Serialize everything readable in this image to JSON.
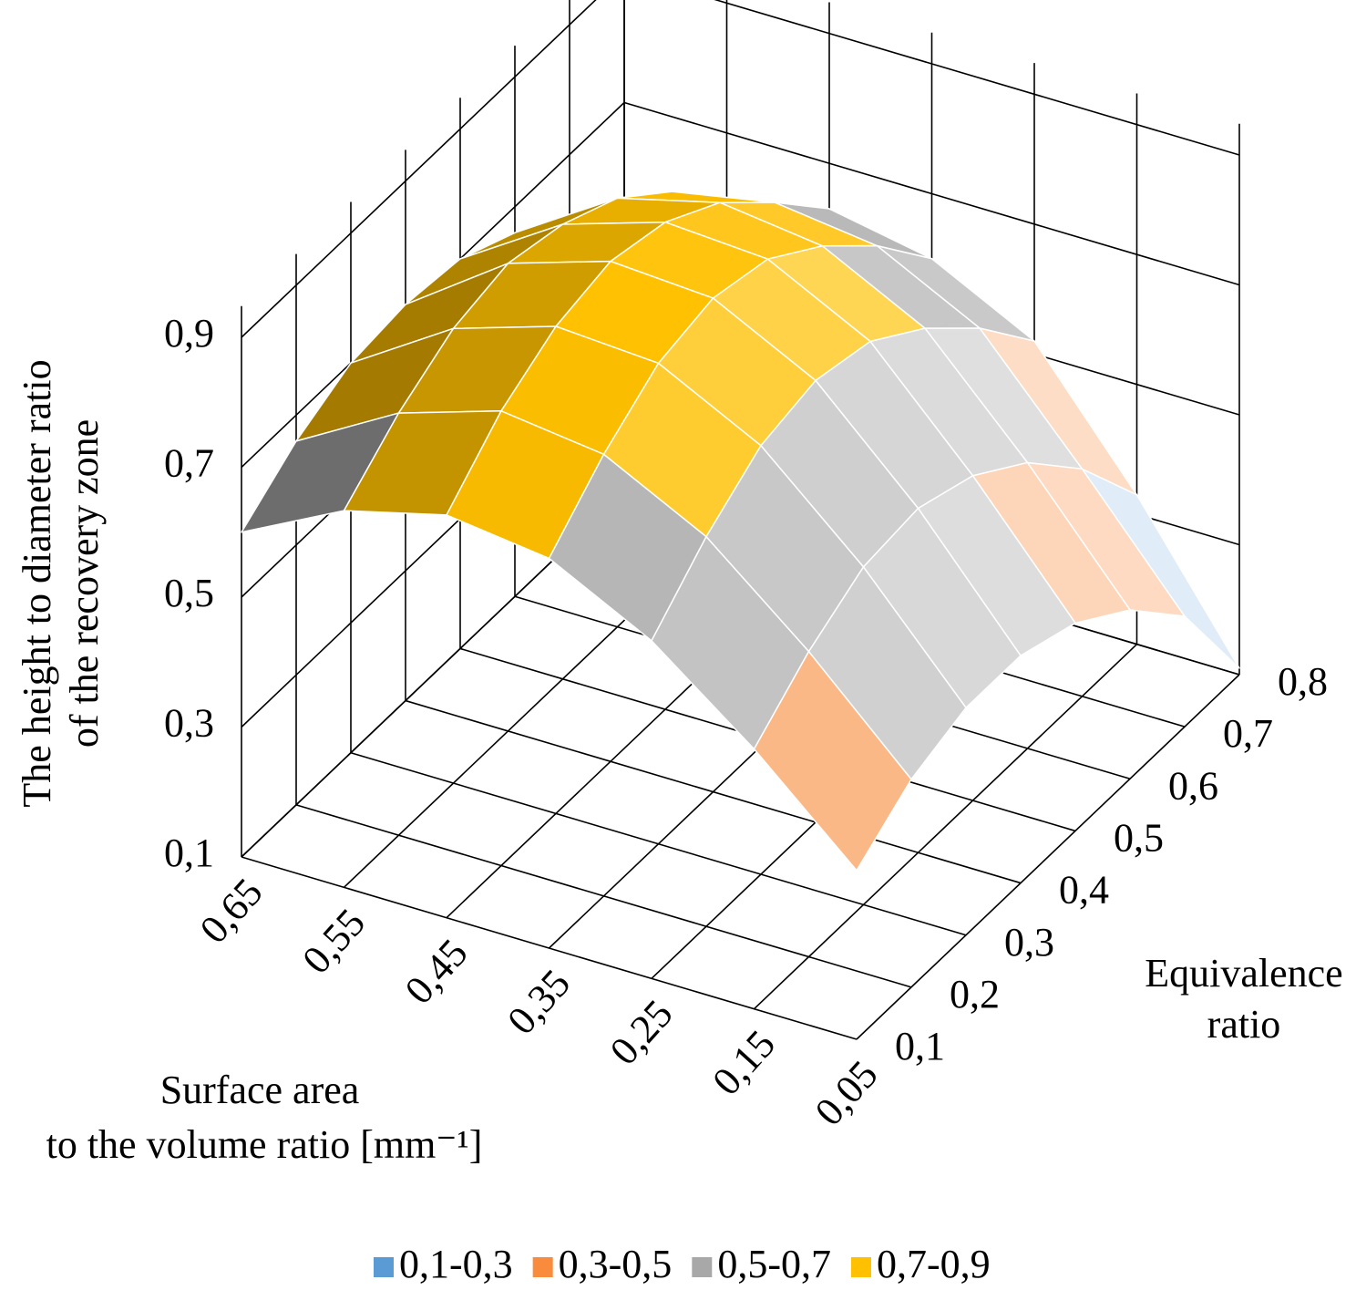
{
  "chart_data": {
    "type": "surface",
    "z_title": [
      "The height to diameter ratio",
      "of the recovery zone"
    ],
    "x_title": [
      "Surface area",
      "to the volume ratio [mm⁻¹]"
    ],
    "y_title": [
      "Equivalence",
      "ratio"
    ],
    "x_categories": [
      "0,65",
      "0,55",
      "0,45",
      "0,35",
      "0,25",
      "0,15",
      "0,05"
    ],
    "y_categories": [
      "0,1",
      "0,2",
      "0,3",
      "0,4",
      "0,5",
      "0,6",
      "0,7",
      "0,8"
    ],
    "zlim": [
      0.1,
      0.9
    ],
    "zticks": [
      {
        "value": 0.1,
        "label": "0,1"
      },
      {
        "value": 0.3,
        "label": "0,3"
      },
      {
        "value": 0.5,
        "label": "0,5"
      },
      {
        "value": 0.7,
        "label": "0,7"
      },
      {
        "value": 0.9,
        "label": "0,9"
      }
    ],
    "z": [
      [
        0.6,
        0.68,
        0.72,
        0.7,
        0.62,
        0.5,
        0.36
      ],
      [
        0.66,
        0.75,
        0.8,
        0.78,
        0.7,
        0.57,
        0.42
      ],
      [
        0.7,
        0.8,
        0.85,
        0.84,
        0.76,
        0.62,
        0.45
      ],
      [
        0.71,
        0.82,
        0.87,
        0.86,
        0.78,
        0.63,
        0.45
      ],
      [
        0.7,
        0.8,
        0.85,
        0.84,
        0.76,
        0.6,
        0.42
      ],
      [
        0.66,
        0.76,
        0.8,
        0.78,
        0.7,
        0.54,
        0.36
      ],
      [
        0.6,
        0.69,
        0.72,
        0.7,
        0.62,
        0.45,
        0.27
      ],
      [
        0.52,
        0.6,
        0.63,
        0.6,
        0.52,
        0.33,
        0.11
      ]
    ],
    "bands": [
      {
        "name": "0,1-0,3",
        "color": "#5b9bd5",
        "from": 0.1,
        "to": 0.3
      },
      {
        "name": "0,3-0,5",
        "color": "#f98b3c",
        "from": 0.3,
        "to": 0.5
      },
      {
        "name": "0,5-0,7",
        "color": "#a8a8a8",
        "from": 0.5,
        "to": 0.7
      },
      {
        "name": "0,7-0,9",
        "color": "#ffc000",
        "from": 0.7,
        "to": 0.9
      }
    ],
    "grid": true
  }
}
